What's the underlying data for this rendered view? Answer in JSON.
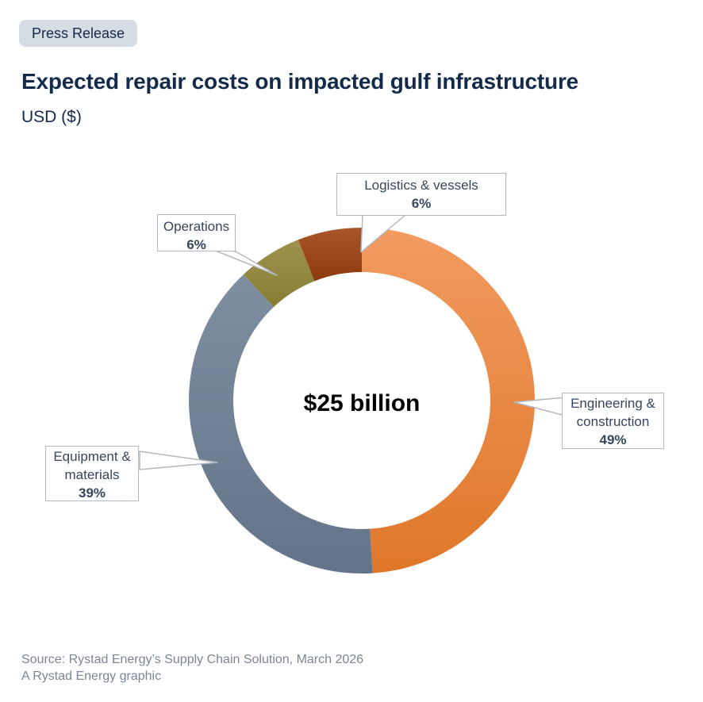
{
  "badge": {
    "label": "Press Release"
  },
  "header": {
    "title": "Expected repair costs on impacted gulf infrastructure",
    "subtitle": "USD ($)"
  },
  "chart_data": {
    "type": "pie",
    "variant": "donut",
    "title": "Expected repair costs on impacted gulf infrastructure",
    "unit_label": "USD ($)",
    "center_label": "$25 billion",
    "total": "$25 billion",
    "direction": "clockwise",
    "start_angle_deg": 0,
    "legend_position": "callouts",
    "segments": [
      {
        "label": "Engineering & construction",
        "pct": 49,
        "color": "#E8873E",
        "gradient": [
          "#F29B61",
          "#DF772A"
        ]
      },
      {
        "label": "Equipment & materials",
        "pct": 39,
        "color": "#71819A",
        "gradient": [
          "#7F8FA1",
          "#63748A"
        ]
      },
      {
        "label": "Operations",
        "pct": 6,
        "color": "#948A41",
        "gradient": [
          "#9D9350",
          "#877D31"
        ]
      },
      {
        "label": "Logistics & vessels",
        "pct": 6,
        "color": "#9A4315",
        "gradient": [
          "#A8562A",
          "#8E3A0F"
        ]
      }
    ]
  },
  "callouts": [
    {
      "label": "Logistics & vessels",
      "value": "6%"
    },
    {
      "label": "Operations",
      "value": "6%"
    },
    {
      "label": "Engineering & construction",
      "value": "49%"
    },
    {
      "label": "Equipment & materials",
      "value": "39%"
    }
  ],
  "footer": {
    "source_line": "Source: Rystad Energy’s Supply Chain Solution, March 2026",
    "credit_line": "A Rystad Energy graphic"
  }
}
